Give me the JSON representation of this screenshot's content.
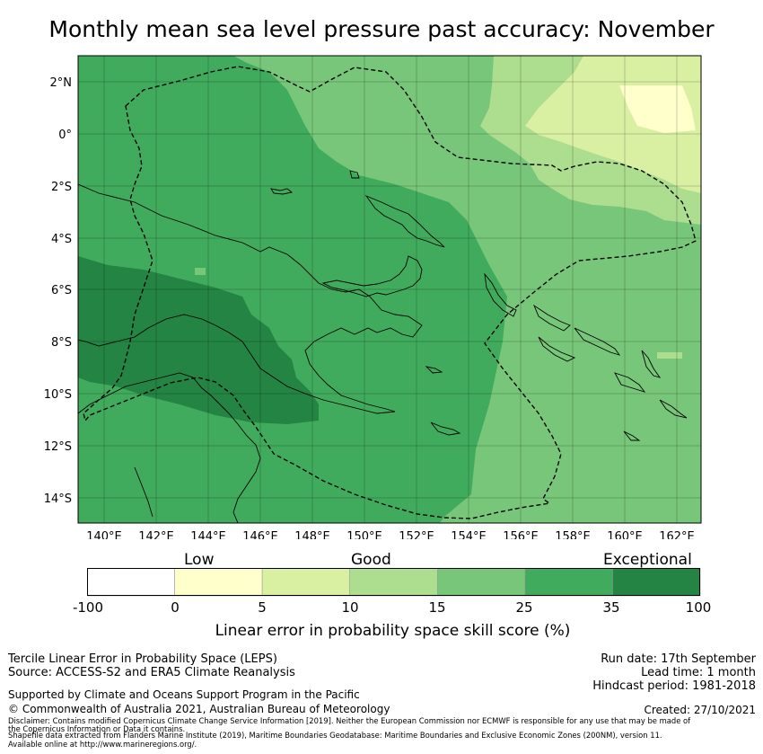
{
  "title": "Monthly mean sea level pressure past accuracy: November",
  "map": {
    "lat_ticks": [
      "2°N",
      "0°",
      "2°S",
      "4°S",
      "6°S",
      "8°S",
      "10°S",
      "12°S",
      "14°S"
    ],
    "lon_ticks": [
      "140°E",
      "142°E",
      "144°E",
      "146°E",
      "148°E",
      "150°E",
      "152°E",
      "154°E",
      "156°E",
      "158°E",
      "160°E",
      "162°E"
    ],
    "lon_range": [
      139,
      163
    ],
    "lat_range": [
      -15,
      3
    ]
  },
  "colorbar": {
    "categories": [
      "Low",
      "Good",
      "Exceptional"
    ],
    "ticks": [
      "-100",
      "0",
      "5",
      "10",
      "15",
      "25",
      "35",
      "100"
    ],
    "colors": [
      "#ffffff",
      "#ffffcc",
      "#d9f0a3",
      "#addd8e",
      "#78c679",
      "#41ab5d",
      "#238443"
    ],
    "label": "Linear error in probability space skill score (%)"
  },
  "footer": {
    "method": "Tercile Linear Error in Probability Space (LEPS)",
    "source": "Source: ACCESS-S2 and ERA5 Climate Reanalysis",
    "run_date": "Run date: 17th September",
    "lead_time": "Lead time: 1 month",
    "hindcast": "Hindcast period: 1981-2018",
    "support": "Supported by Climate and Oceans Support Program in the Pacific",
    "copyright": "© Commonwealth of Australia 2021, Australian Bureau of Meteorology",
    "created": "Created: 27/10/2021",
    "disclaimer1": "Disclaimer: Contains modified Copernicus Climate Change Service Information [2019]. Neither the European Commission nor ECMWF is responsible for any use that may be made of",
    "disclaimer2": "the Copernicus Information or Data it contains.",
    "shapefile1": "Shapefile data extracted from Flanders Marine Institute (2019), Maritime Boundaries Geodatabase: Maritime Boundaries and Exclusive Economic Zones (200NM), version 11.",
    "shapefile2": "Available online at http://www.marineregions.org/."
  }
}
